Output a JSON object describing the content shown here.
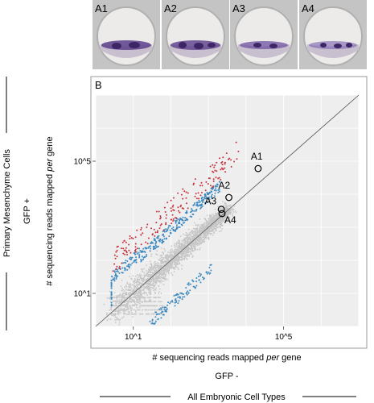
{
  "panel_a": {
    "labels": [
      "A1",
      "A2",
      "A3",
      "A4"
    ]
  },
  "side_labels": {
    "y_group": "Primary Mesenchyme Cells",
    "y_condition": "GFP +",
    "x_group": "All Embryonic Cell Types",
    "x_condition": "GFP -"
  },
  "chart_data": {
    "type": "scatter",
    "panel_label": "B",
    "xlabel_pre": "# sequencing reads mapped ",
    "xlabel_em": "per",
    "xlabel_post": " gene",
    "ylabel_pre": "# sequencing reads mapped ",
    "ylabel_em": "per",
    "ylabel_post": " gene",
    "x_scale": "log",
    "y_scale": "log",
    "xlim": [
      1,
      10000000
    ],
    "ylim": [
      1,
      10000000
    ],
    "x_ticks": [
      {
        "value": 10,
        "label": "10^1"
      },
      {
        "value": 100000,
        "label": "10^5"
      }
    ],
    "y_ticks": [
      {
        "value": 10,
        "label": "10^1"
      },
      {
        "value": 100000,
        "label": "10^5"
      }
    ],
    "grid": true,
    "diagonal": true,
    "colors": {
      "background": "#d9d9d9",
      "up_significant": "#c8323c",
      "up_moderate": "#3e8ac0",
      "down_moderate": "#3e8ac0",
      "not_significant": "#c6c6c6",
      "highlight_circle": "#000000"
    },
    "highlighted_genes": [
      {
        "label": "A1",
        "x": 21000,
        "y": 60000
      },
      {
        "label": "A2",
        "x": 3500,
        "y": 8000
      },
      {
        "label": "A3",
        "x": 2200,
        "y": 3500
      },
      {
        "label": "A4",
        "x": 2300,
        "y": 2600
      }
    ]
  }
}
